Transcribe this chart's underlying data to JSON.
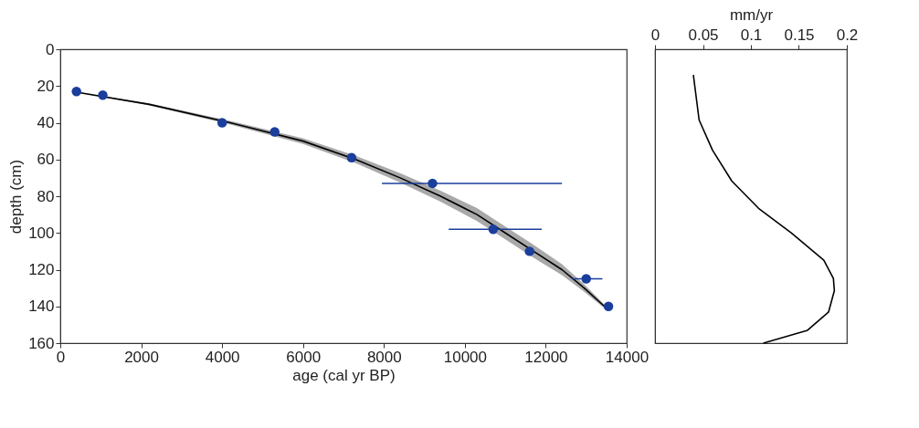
{
  "chart_data": [
    {
      "type": "scatter",
      "xlabel": "age (cal yr BP)",
      "ylabel": "depth (cm)",
      "xlim": [
        0,
        14000
      ],
      "ylim": [
        160,
        0
      ],
      "xticks": [
        0,
        2000,
        4000,
        6000,
        8000,
        10000,
        12000,
        14000
      ],
      "yticks": [
        0,
        20,
        40,
        60,
        80,
        100,
        120,
        140,
        160
      ],
      "grid": false,
      "marker": "circle",
      "series": [
        {
          "type": "line",
          "marker": "none",
          "color": "#000000",
          "x": [
            300,
            2200,
            4200,
            6000,
            7300,
            8400,
            9400,
            10300,
            11000,
            11700,
            12400,
            12950,
            13450
          ],
          "values": [
            23,
            30,
            40,
            50,
            60,
            70,
            80,
            90,
            100,
            110,
            120,
            130,
            140
          ],
          "lower": [
            23,
            29.5,
            39,
            48.5,
            58,
            67.5,
            77,
            86.5,
            96.5,
            106.5,
            117,
            128,
            139
          ],
          "upper": [
            23,
            30.5,
            41,
            51.5,
            62,
            72.5,
            83,
            93.5,
            103.5,
            113.5,
            123,
            132,
            141
          ]
        },
        {
          "type": "scatter",
          "color": "#1a3e9c",
          "x": [
            400,
            1050,
            4000,
            5300,
            7200,
            9200,
            10700,
            11600,
            13000,
            13550
          ],
          "values": [
            23,
            25,
            40,
            45,
            59,
            73,
            98,
            110,
            125,
            140
          ],
          "xerrors": [
            null,
            null,
            null,
            null,
            null,
            [
              7950,
              12400
            ],
            [
              9600,
              11900
            ],
            null,
            [
              12650,
              13400
            ],
            null
          ]
        }
      ]
    },
    {
      "type": "line",
      "xlabel": "mm/yr",
      "xlim": [
        0,
        0.2
      ],
      "xticks": [
        0,
        0.05,
        0.1,
        0.15,
        0.2
      ],
      "ylim": [
        160,
        0
      ],
      "tick_labels": "x",
      "grid": false,
      "series": [
        {
          "color": "#000000",
          "x": [
            0.04,
            0.046,
            0.06,
            0.08,
            0.108,
            0.142,
            0.176,
            0.186,
            0.187,
            0.181,
            0.159,
            0.113
          ],
          "values": [
            14,
            38.5,
            55,
            71.7,
            86.6,
            99.9,
            114.8,
            124.8,
            131.4,
            143,
            153,
            160
          ]
        }
      ]
    }
  ]
}
